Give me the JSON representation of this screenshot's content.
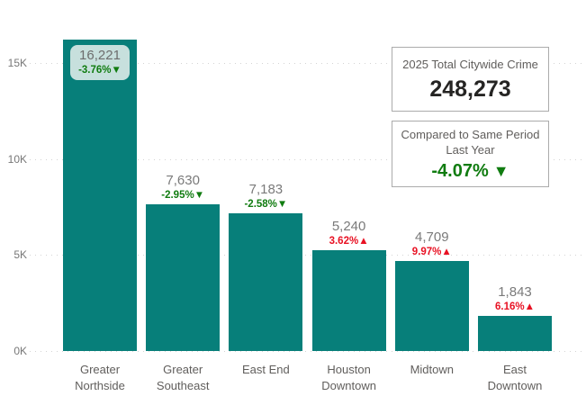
{
  "chart_data": {
    "type": "bar",
    "title": "",
    "xlabel": "",
    "ylabel": "",
    "categories": [
      "Greater Northside",
      "Greater Southeast",
      "East End",
      "Houston Downtown",
      "Midtown",
      "East Downtown"
    ],
    "category_lines": [
      [
        "Greater",
        "Northside"
      ],
      [
        "Greater",
        "Southeast"
      ],
      [
        "East End"
      ],
      [
        "Houston",
        "Downtown"
      ],
      [
        "Midtown"
      ],
      [
        "East",
        "Downtown"
      ]
    ],
    "values": [
      16221,
      7630,
      7183,
      5240,
      4709,
      1843
    ],
    "value_labels": [
      "16,221",
      "7,630",
      "7,183",
      "5,240",
      "4,709",
      "1,843"
    ],
    "changes": [
      {
        "label": "-3.76%",
        "direction": "down"
      },
      {
        "label": "-2.95%",
        "direction": "down"
      },
      {
        "label": "-2.58%",
        "direction": "down"
      },
      {
        "label": "3.62%",
        "direction": "up"
      },
      {
        "label": "9.97%",
        "direction": "up"
      },
      {
        "label": "6.16%",
        "direction": "up"
      }
    ],
    "first_label_inside": true,
    "y_axis": {
      "ticks": [
        {
          "label": "0K",
          "value": 0
        },
        {
          "label": "5K",
          "value": 5000
        },
        {
          "label": "10K",
          "value": 10000
        },
        {
          "label": "15K",
          "value": 15000
        }
      ],
      "max_tick": 15000
    },
    "ylim": [
      0,
      16875
    ],
    "grid": "dotted horizontal",
    "legend": "none"
  },
  "cards": {
    "total": {
      "title": "2025 Total Citywide Crime",
      "value": "248,273"
    },
    "comparison": {
      "title_line1": "Compared to Same Period",
      "title_line2": "Last Year",
      "value": "-4.07%",
      "direction": "down"
    }
  },
  "icons": {
    "triangle_down": "▼",
    "triangle_up": "▲"
  },
  "colors": {
    "bar": "#077f7a",
    "decrease_green": "#107c10",
    "increase_red": "#e81123",
    "inside_label_bg": "#c7e0dd",
    "grid_dot": "#d4d4d4",
    "axis_text": "#777777",
    "label_text": "#7a7a7a",
    "category_text": "#605e5c",
    "card_border": "#ababab",
    "card_title_text": "#605e5c",
    "card_value_text": "#252423"
  }
}
